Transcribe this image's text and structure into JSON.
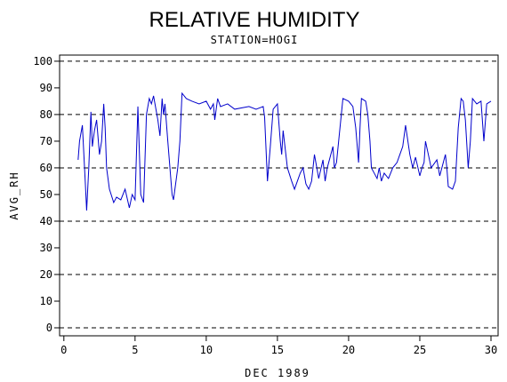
{
  "chart_data": {
    "type": "line",
    "title": "RELATIVE HUMIDITY",
    "subtitle": "STATION=HOGI",
    "xlabel": "DEC 1989",
    "ylabel": "AVG_RH",
    "x": [
      1.0,
      1.1,
      1.3,
      1.5,
      1.6,
      1.75,
      1.9,
      2.0,
      2.15,
      2.3,
      2.5,
      2.65,
      2.8,
      2.9,
      3.0,
      3.2,
      3.5,
      3.7,
      4.0,
      4.3,
      4.6,
      4.8,
      5.0,
      5.2,
      5.4,
      5.6,
      5.8,
      6.0,
      6.15,
      6.3,
      6.6,
      6.75,
      6.9,
      7.0,
      7.1,
      7.3,
      7.6,
      7.7,
      8.0,
      8.15,
      8.3,
      8.6,
      9.0,
      9.5,
      10.0,
      10.3,
      10.5,
      10.6,
      10.8,
      11.0,
      11.5,
      12.0,
      13.0,
      13.5,
      14.0,
      14.1,
      14.3,
      14.5,
      14.7,
      15.0,
      15.2,
      15.3,
      15.4,
      15.7,
      16.0,
      16.2,
      16.6,
      16.8,
      17.0,
      17.2,
      17.4,
      17.6,
      17.9,
      18.2,
      18.35,
      18.5,
      18.9,
      19.0,
      19.15,
      19.3,
      19.6,
      20.0,
      20.3,
      20.5,
      20.7,
      20.8,
      20.9,
      21.2,
      21.35,
      21.5,
      21.6,
      21.8,
      22.0,
      22.15,
      22.3,
      22.5,
      22.8,
      23.1,
      23.4,
      23.6,
      23.8,
      24.0,
      24.3,
      24.5,
      24.7,
      25.0,
      25.15,
      25.3,
      25.4,
      25.6,
      25.8,
      26.2,
      26.4,
      26.8,
      26.9,
      27.0,
      27.3,
      27.5,
      27.7,
      27.9,
      28.05,
      28.2,
      28.4,
      28.55,
      28.7,
      29.0,
      29.3,
      29.5,
      29.7,
      30.0
    ],
    "series": [
      {
        "name": "AVG_RH",
        "color": "#0000cc",
        "values": [
          63,
          70,
          76,
          55,
          44,
          60,
          81,
          68,
          74,
          78,
          65,
          70,
          84,
          75,
          60,
          52,
          47,
          49,
          48,
          52,
          45,
          50,
          48,
          83,
          50,
          47,
          80,
          86,
          84,
          87,
          78,
          72,
          86,
          80,
          84,
          70,
          50,
          48,
          60,
          70,
          88,
          86,
          85,
          84,
          85,
          82,
          84,
          78,
          86,
          83,
          84,
          82,
          83,
          82,
          83,
          79,
          55,
          68,
          82,
          84,
          70,
          65,
          74,
          60,
          55,
          52,
          58,
          60,
          54,
          52,
          55,
          65,
          56,
          63,
          55,
          60,
          68,
          60,
          62,
          70,
          86,
          85,
          83,
          75,
          62,
          75,
          86,
          85,
          80,
          70,
          60,
          58,
          56,
          60,
          55,
          58,
          56,
          60,
          62,
          65,
          68,
          76,
          65,
          60,
          64,
          57,
          60,
          62,
          70,
          65,
          60,
          63,
          57,
          65,
          60,
          53,
          52,
          55,
          75,
          86,
          85,
          78,
          60,
          70,
          86,
          84,
          85,
          70,
          84,
          85
        ]
      }
    ],
    "xlim": [
      -0.3,
      30.5
    ],
    "ylim": [
      -3,
      102.3
    ],
    "xticks": [
      0,
      5,
      10,
      15,
      20,
      25,
      30
    ],
    "yticks": [
      0,
      10,
      20,
      30,
      40,
      50,
      60,
      70,
      80,
      90,
      100
    ],
    "ygrid": [
      0,
      20,
      40,
      60,
      80,
      100
    ]
  }
}
